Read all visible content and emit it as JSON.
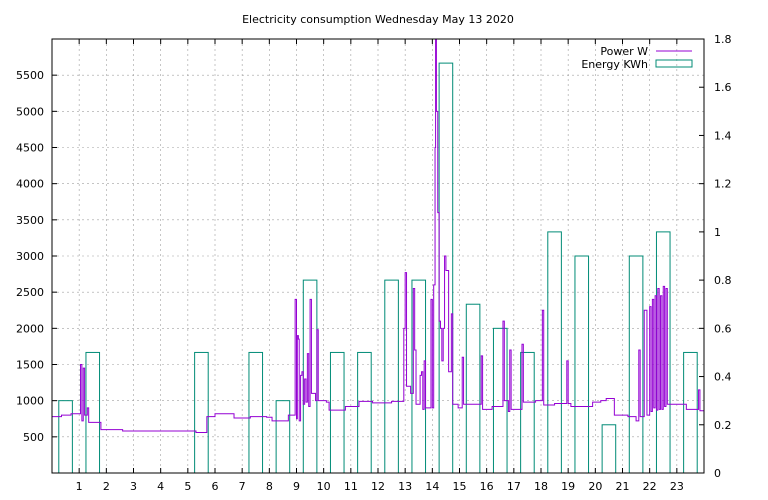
{
  "chart_data": {
    "type": "line",
    "title": "Electricity consumption Wednesday May 13 2020",
    "xlabel": "",
    "ylabel": "",
    "xlim": [
      0,
      24
    ],
    "ylim": [
      0,
      6000
    ],
    "y2lim": [
      0,
      1.8
    ],
    "grid": true,
    "legend_position": "top-right",
    "x_ticks": [
      1,
      2,
      3,
      4,
      5,
      6,
      7,
      8,
      9,
      10,
      11,
      12,
      13,
      14,
      15,
      16,
      17,
      18,
      19,
      20,
      21,
      22,
      23
    ],
    "y_ticks": [
      500,
      1000,
      1500,
      2000,
      2500,
      3000,
      3500,
      4000,
      4500,
      5000,
      5500
    ],
    "y2_ticks": [
      0,
      0.2,
      0.4,
      0.6,
      0.8,
      1,
      1.2,
      1.4,
      1.6,
      1.8
    ],
    "series": [
      {
        "name": "Power W",
        "axis": "y1",
        "color": "#9400d3",
        "style": "steps",
        "points": [
          [
            0,
            780
          ],
          [
            0.35,
            800
          ],
          [
            0.7,
            820
          ],
          [
            1.0,
            820
          ],
          [
            1.05,
            1500
          ],
          [
            1.1,
            720
          ],
          [
            1.15,
            1450
          ],
          [
            1.2,
            800
          ],
          [
            1.3,
            900
          ],
          [
            1.35,
            700
          ],
          [
            1.8,
            600
          ],
          [
            2.5,
            600
          ],
          [
            2.6,
            580
          ],
          [
            4.5,
            580
          ],
          [
            5.3,
            560
          ],
          [
            5.7,
            780
          ],
          [
            6.0,
            820
          ],
          [
            6.6,
            820
          ],
          [
            6.7,
            760
          ],
          [
            7.3,
            780
          ],
          [
            7.9,
            770
          ],
          [
            8.1,
            720
          ],
          [
            8.7,
            800
          ],
          [
            8.95,
            2400
          ],
          [
            9.0,
            750
          ],
          [
            9.03,
            1900
          ],
          [
            9.07,
            1850
          ],
          [
            9.1,
            720
          ],
          [
            9.15,
            1350
          ],
          [
            9.2,
            1400
          ],
          [
            9.25,
            950
          ],
          [
            9.3,
            1300
          ],
          [
            9.35,
            980
          ],
          [
            9.4,
            1650
          ],
          [
            9.45,
            920
          ],
          [
            9.5,
            2400
          ],
          [
            9.55,
            1100
          ],
          [
            9.7,
            1000
          ],
          [
            9.75,
            1980
          ],
          [
            9.8,
            1000
          ],
          [
            10.1,
            980
          ],
          [
            10.2,
            870
          ],
          [
            10.7,
            870
          ],
          [
            10.8,
            920
          ],
          [
            11.2,
            920
          ],
          [
            11.3,
            990
          ],
          [
            11.8,
            970
          ],
          [
            12.4,
            970
          ],
          [
            12.5,
            990
          ],
          [
            12.9,
            990
          ],
          [
            12.95,
            2000
          ],
          [
            13.0,
            2770
          ],
          [
            13.05,
            1200
          ],
          [
            13.2,
            1100
          ],
          [
            13.3,
            2550
          ],
          [
            13.35,
            1700
          ],
          [
            13.4,
            950
          ],
          [
            13.5,
            950
          ],
          [
            13.55,
            1350
          ],
          [
            13.6,
            1400
          ],
          [
            13.65,
            880
          ],
          [
            13.7,
            1550
          ],
          [
            13.75,
            900
          ],
          [
            13.9,
            900
          ],
          [
            13.95,
            2400
          ],
          [
            14.0,
            900
          ],
          [
            14.05,
            2600
          ],
          [
            14.1,
            4500
          ],
          [
            14.12,
            6000
          ],
          [
            14.15,
            5000
          ],
          [
            14.2,
            3600
          ],
          [
            14.25,
            2100
          ],
          [
            14.3,
            2000
          ],
          [
            14.35,
            1550
          ],
          [
            14.4,
            2000
          ],
          [
            14.45,
            3000
          ],
          [
            14.5,
            2800
          ],
          [
            14.6,
            1400
          ],
          [
            14.7,
            2200
          ],
          [
            14.75,
            950
          ],
          [
            14.95,
            900
          ],
          [
            15.1,
            1600
          ],
          [
            15.15,
            950
          ],
          [
            15.5,
            950
          ],
          [
            15.8,
            1620
          ],
          [
            15.85,
            880
          ],
          [
            16.2,
            920
          ],
          [
            16.6,
            2100
          ],
          [
            16.65,
            1000
          ],
          [
            16.8,
            850
          ],
          [
            16.85,
            1700
          ],
          [
            16.9,
            880
          ],
          [
            17.3,
            1780
          ],
          [
            17.35,
            980
          ],
          [
            17.8,
            1000
          ],
          [
            18.05,
            2250
          ],
          [
            18.1,
            940
          ],
          [
            18.5,
            960
          ],
          [
            18.95,
            1550
          ],
          [
            19.0,
            960
          ],
          [
            19.1,
            920
          ],
          [
            19.9,
            980
          ],
          [
            20.2,
            1000
          ],
          [
            20.4,
            1030
          ],
          [
            20.7,
            800
          ],
          [
            21.2,
            780
          ],
          [
            21.5,
            720
          ],
          [
            21.6,
            1700
          ],
          [
            21.65,
            780
          ],
          [
            21.8,
            2250
          ],
          [
            21.9,
            800
          ],
          [
            22.0,
            2300
          ],
          [
            22.05,
            850
          ],
          [
            22.1,
            2400
          ],
          [
            22.15,
            900
          ],
          [
            22.2,
            2450
          ],
          [
            22.25,
            870
          ],
          [
            22.3,
            2550
          ],
          [
            22.35,
            880
          ],
          [
            22.4,
            2450
          ],
          [
            22.45,
            880
          ],
          [
            22.5,
            2580
          ],
          [
            22.55,
            920
          ],
          [
            22.6,
            2550
          ],
          [
            22.65,
            950
          ],
          [
            23.3,
            950
          ],
          [
            23.35,
            880
          ],
          [
            23.75,
            880
          ],
          [
            23.8,
            1150
          ],
          [
            23.85,
            860
          ],
          [
            24.0,
            860
          ]
        ]
      },
      {
        "name": "Energy KWh",
        "axis": "y2",
        "color": "#008b76",
        "style": "boxes",
        "bars": [
          {
            "hour": 0,
            "value": 0.3
          },
          {
            "hour": 1,
            "value": 0.5
          },
          {
            "hour": 2,
            "value": 0
          },
          {
            "hour": 3,
            "value": 0
          },
          {
            "hour": 4,
            "value": 0
          },
          {
            "hour": 5,
            "value": 0.5
          },
          {
            "hour": 6,
            "value": 0
          },
          {
            "hour": 7,
            "value": 0.5
          },
          {
            "hour": 8,
            "value": 0.3
          },
          {
            "hour": 9,
            "value": 0.8
          },
          {
            "hour": 10,
            "value": 0.5
          },
          {
            "hour": 11,
            "value": 0.5
          },
          {
            "hour": 12,
            "value": 0.8
          },
          {
            "hour": 13,
            "value": 0.8
          },
          {
            "hour": 14,
            "value": 1.7
          },
          {
            "hour": 15,
            "value": 0.7
          },
          {
            "hour": 16,
            "value": 0.6
          },
          {
            "hour": 17,
            "value": 0.5
          },
          {
            "hour": 18,
            "value": 1.0
          },
          {
            "hour": 19,
            "value": 0.9
          },
          {
            "hour": 20,
            "value": 0.2
          },
          {
            "hour": 21,
            "value": 0.9
          },
          {
            "hour": 22,
            "value": 1.0
          },
          {
            "hour": 23,
            "value": 0.5
          }
        ]
      }
    ]
  }
}
